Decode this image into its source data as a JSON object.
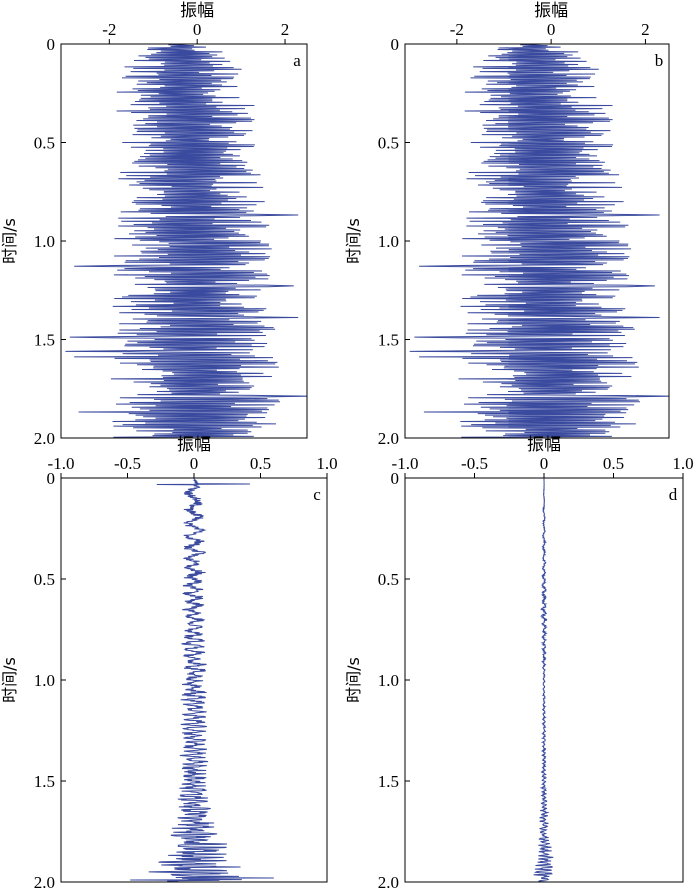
{
  "chart_data": [
    {
      "type": "line",
      "panel_label": "a",
      "xlabel": "振幅",
      "ylabel": "时间/s",
      "xlim": [
        -3.1,
        2.5
      ],
      "ylim": [
        0,
        2.0
      ],
      "y_reversed": true,
      "x_axis_position": "top",
      "xticks": [
        -2,
        0,
        2
      ],
      "xtick_labels": [
        "-2",
        "0",
        "2"
      ],
      "yticks": [
        0,
        0.5,
        1.0,
        1.5,
        2.0
      ],
      "ytick_labels": [
        "0",
        "0.5",
        "1.0",
        "1.5",
        "2.0"
      ],
      "line_color": "#3a4a9e",
      "grid": false,
      "trace": {
        "seed": 11,
        "sample_interval_s": 0.004,
        "envelope": [
          [
            0,
            0.5
          ],
          [
            0.05,
            1.3
          ],
          [
            0.3,
            1.6
          ],
          [
            0.6,
            1.6
          ],
          [
            1.0,
            1.8
          ],
          [
            1.5,
            1.9
          ],
          [
            2.0,
            2.0
          ]
        ],
        "center": [
          [
            0,
            -0.4
          ],
          [
            0.5,
            -0.2
          ],
          [
            1.0,
            -0.1
          ],
          [
            2.0,
            0.0
          ]
        ],
        "spikes": [
          [
            0.87,
            2.3
          ],
          [
            1.23,
            2.2
          ],
          [
            1.39,
            2.3
          ],
          [
            1.79,
            2.6
          ],
          [
            1.13,
            -2.8
          ],
          [
            1.49,
            -2.9
          ],
          [
            1.56,
            -3.0
          ],
          [
            1.59,
            -2.8
          ],
          [
            1.87,
            -2.7
          ]
        ],
        "style": "zigzag"
      }
    },
    {
      "type": "line",
      "panel_label": "b",
      "xlabel": "振幅",
      "ylabel": "时间/s",
      "xlim": [
        -3.1,
        2.5
      ],
      "ylim": [
        0,
        2.0
      ],
      "y_reversed": true,
      "x_axis_position": "top",
      "xticks": [
        -2,
        0,
        2
      ],
      "xtick_labels": [
        "-2",
        "0",
        "2"
      ],
      "yticks": [
        0,
        0.5,
        1.0,
        1.5,
        2.0
      ],
      "ytick_labels": [
        "0",
        "0.5",
        "1.0",
        "1.5",
        "2.0"
      ],
      "line_color": "#3a4a9e",
      "grid": false,
      "trace": {
        "seed": 11,
        "sample_interval_s": 0.004,
        "envelope": [
          [
            0,
            0.5
          ],
          [
            0.05,
            1.3
          ],
          [
            0.3,
            1.6
          ],
          [
            0.6,
            1.6
          ],
          [
            1.0,
            1.8
          ],
          [
            1.5,
            1.9
          ],
          [
            2.0,
            2.0
          ]
        ],
        "center": [
          [
            0,
            -0.4
          ],
          [
            0.5,
            -0.2
          ],
          [
            1.0,
            -0.1
          ],
          [
            2.0,
            0.0
          ]
        ],
        "spikes": [
          [
            0.87,
            2.3
          ],
          [
            1.23,
            2.2
          ],
          [
            1.39,
            2.3
          ],
          [
            1.79,
            2.6
          ],
          [
            1.13,
            -2.8
          ],
          [
            1.49,
            -2.9
          ],
          [
            1.56,
            -3.0
          ],
          [
            1.59,
            -2.8
          ],
          [
            1.87,
            -2.7
          ]
        ],
        "style": "zigzag"
      }
    },
    {
      "type": "line",
      "panel_label": "c",
      "xlabel": "振幅",
      "ylabel": "时间/s",
      "xlim": [
        -1.0,
        1.0
      ],
      "ylim": [
        0,
        2.0
      ],
      "y_reversed": true,
      "x_axis_position": "top",
      "xticks": [
        -1.0,
        -0.5,
        0,
        0.5,
        1.0
      ],
      "xtick_labels": [
        "-1.0",
        "-0.5",
        "0",
        "0.5",
        "1.0"
      ],
      "yticks": [
        0,
        0.5,
        1.0,
        1.5,
        2.0
      ],
      "ytick_labels": [
        "0",
        "0.5",
        "1.0",
        "1.5",
        "2.0"
      ],
      "line_color": "#3a4a9e",
      "grid": false,
      "trace": {
        "seed": 23,
        "sample_interval_s": 0.002,
        "envelope": [
          [
            0,
            0.0
          ],
          [
            0.05,
            0.07
          ],
          [
            0.6,
            0.08
          ],
          [
            1.0,
            0.09
          ],
          [
            1.5,
            0.1
          ],
          [
            1.7,
            0.14
          ],
          [
            1.8,
            0.22
          ],
          [
            1.9,
            0.3
          ],
          [
            2.0,
            0.33
          ]
        ],
        "center": [
          [
            0,
            0.0
          ],
          [
            2.0,
            0.0
          ]
        ],
        "spikes": [
          [
            0.03,
            0.42
          ],
          [
            0.032,
            -0.28
          ],
          [
            1.98,
            0.6
          ],
          [
            1.99,
            -0.48
          ]
        ],
        "style": "smooth"
      }
    },
    {
      "type": "line",
      "panel_label": "d",
      "xlabel": "振幅",
      "ylabel": "时间/s",
      "xlim": [
        -1.0,
        1.0
      ],
      "ylim": [
        0,
        2.0
      ],
      "y_reversed": true,
      "x_axis_position": "top",
      "xticks": [
        -1.0,
        -0.5,
        0,
        0.5,
        1.0
      ],
      "xtick_labels": [
        "-1.0",
        "-0.5",
        "0",
        "0.5",
        "1.0"
      ],
      "yticks": [
        0,
        0.5,
        1.0,
        1.5,
        2.0
      ],
      "ytick_labels": [
        "0",
        "0.5",
        "1.0",
        "1.5",
        "2.0"
      ],
      "line_color": "#3a4a9e",
      "grid": false,
      "trace": {
        "seed": 37,
        "sample_interval_s": 0.002,
        "envelope": [
          [
            0,
            0.0
          ],
          [
            0.2,
            0.008
          ],
          [
            0.5,
            0.012
          ],
          [
            0.7,
            0.02
          ],
          [
            1.0,
            0.006
          ],
          [
            1.4,
            0.012
          ],
          [
            1.6,
            0.02
          ],
          [
            1.8,
            0.04
          ],
          [
            1.95,
            0.08
          ],
          [
            2.0,
            0.06
          ]
        ],
        "center": [
          [
            0,
            0.0
          ],
          [
            2.0,
            0.0
          ]
        ],
        "spikes": [],
        "style": "smooth"
      }
    }
  ]
}
